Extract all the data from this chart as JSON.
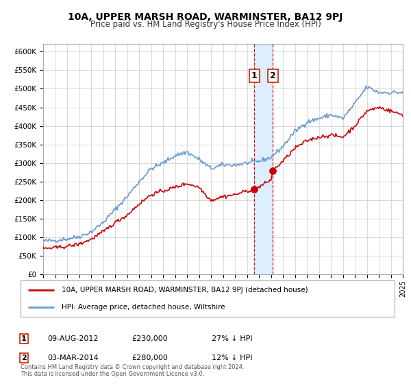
{
  "title": "10A, UPPER MARSH ROAD, WARMINSTER, BA12 9PJ",
  "subtitle": "Price paid vs. HM Land Registry's House Price Index (HPI)",
  "red_label": "10A, UPPER MARSH ROAD, WARMINSTER, BA12 9PJ (detached house)",
  "blue_label": "HPI: Average price, detached house, Wiltshire",
  "transaction1": {
    "label": "1",
    "date": "09-AUG-2012",
    "price": 230000,
    "pct": "27% ↓ HPI",
    "year": 2012.6
  },
  "transaction2": {
    "label": "2",
    "date": "03-MAR-2014",
    "price": 280000,
    "pct": "12% ↓ HPI",
    "year": 2014.17
  },
  "ylim": [
    0,
    620000
  ],
  "xlim_start": 1995,
  "xlim_end": 2025,
  "footer": "Contains HM Land Registry data © Crown copyright and database right 2024.\nThis data is licensed under the Open Government Licence v3.0.",
  "red_color": "#cc0000",
  "blue_color": "#6699cc",
  "shade_color": "#ddeeff",
  "grid_color": "#cccccc",
  "background_color": "#ffffff",
  "blue_key_years": [
    1995,
    1996,
    1997,
    1998,
    1999,
    2000,
    2001,
    2002,
    2003,
    2004,
    2005,
    2006,
    2007,
    2008,
    2009,
    2010,
    2011,
    2012,
    2013,
    2014,
    2015,
    2016,
    2017,
    2018,
    2019,
    2020,
    2021,
    2022,
    2023,
    2024,
    2025
  ],
  "blue_key_vals": [
    90000,
    92000,
    96000,
    102000,
    115000,
    140000,
    175000,
    210000,
    250000,
    285000,
    300000,
    320000,
    330000,
    310000,
    285000,
    295000,
    295000,
    300000,
    305000,
    315000,
    345000,
    385000,
    410000,
    420000,
    430000,
    420000,
    460000,
    505000,
    490000,
    490000,
    490000
  ],
  "red_key_years": [
    1995,
    1996,
    1997,
    1998,
    1999,
    2000,
    2001,
    2002,
    2003,
    2004,
    2005,
    2006,
    2007,
    2008,
    2009,
    2010,
    2011,
    2012,
    2012.6,
    2013,
    2014,
    2014.17,
    2015,
    2016,
    2017,
    2018,
    2019,
    2020,
    2021,
    2022,
    2023,
    2024,
    2025
  ],
  "red_key_vals": [
    70000,
    72000,
    76000,
    82000,
    95000,
    115000,
    140000,
    160000,
    190000,
    215000,
    225000,
    235000,
    245000,
    235000,
    200000,
    210000,
    215000,
    225000,
    230000,
    235000,
    255000,
    280000,
    305000,
    340000,
    360000,
    370000,
    375000,
    370000,
    400000,
    440000,
    450000,
    440000,
    430000
  ]
}
